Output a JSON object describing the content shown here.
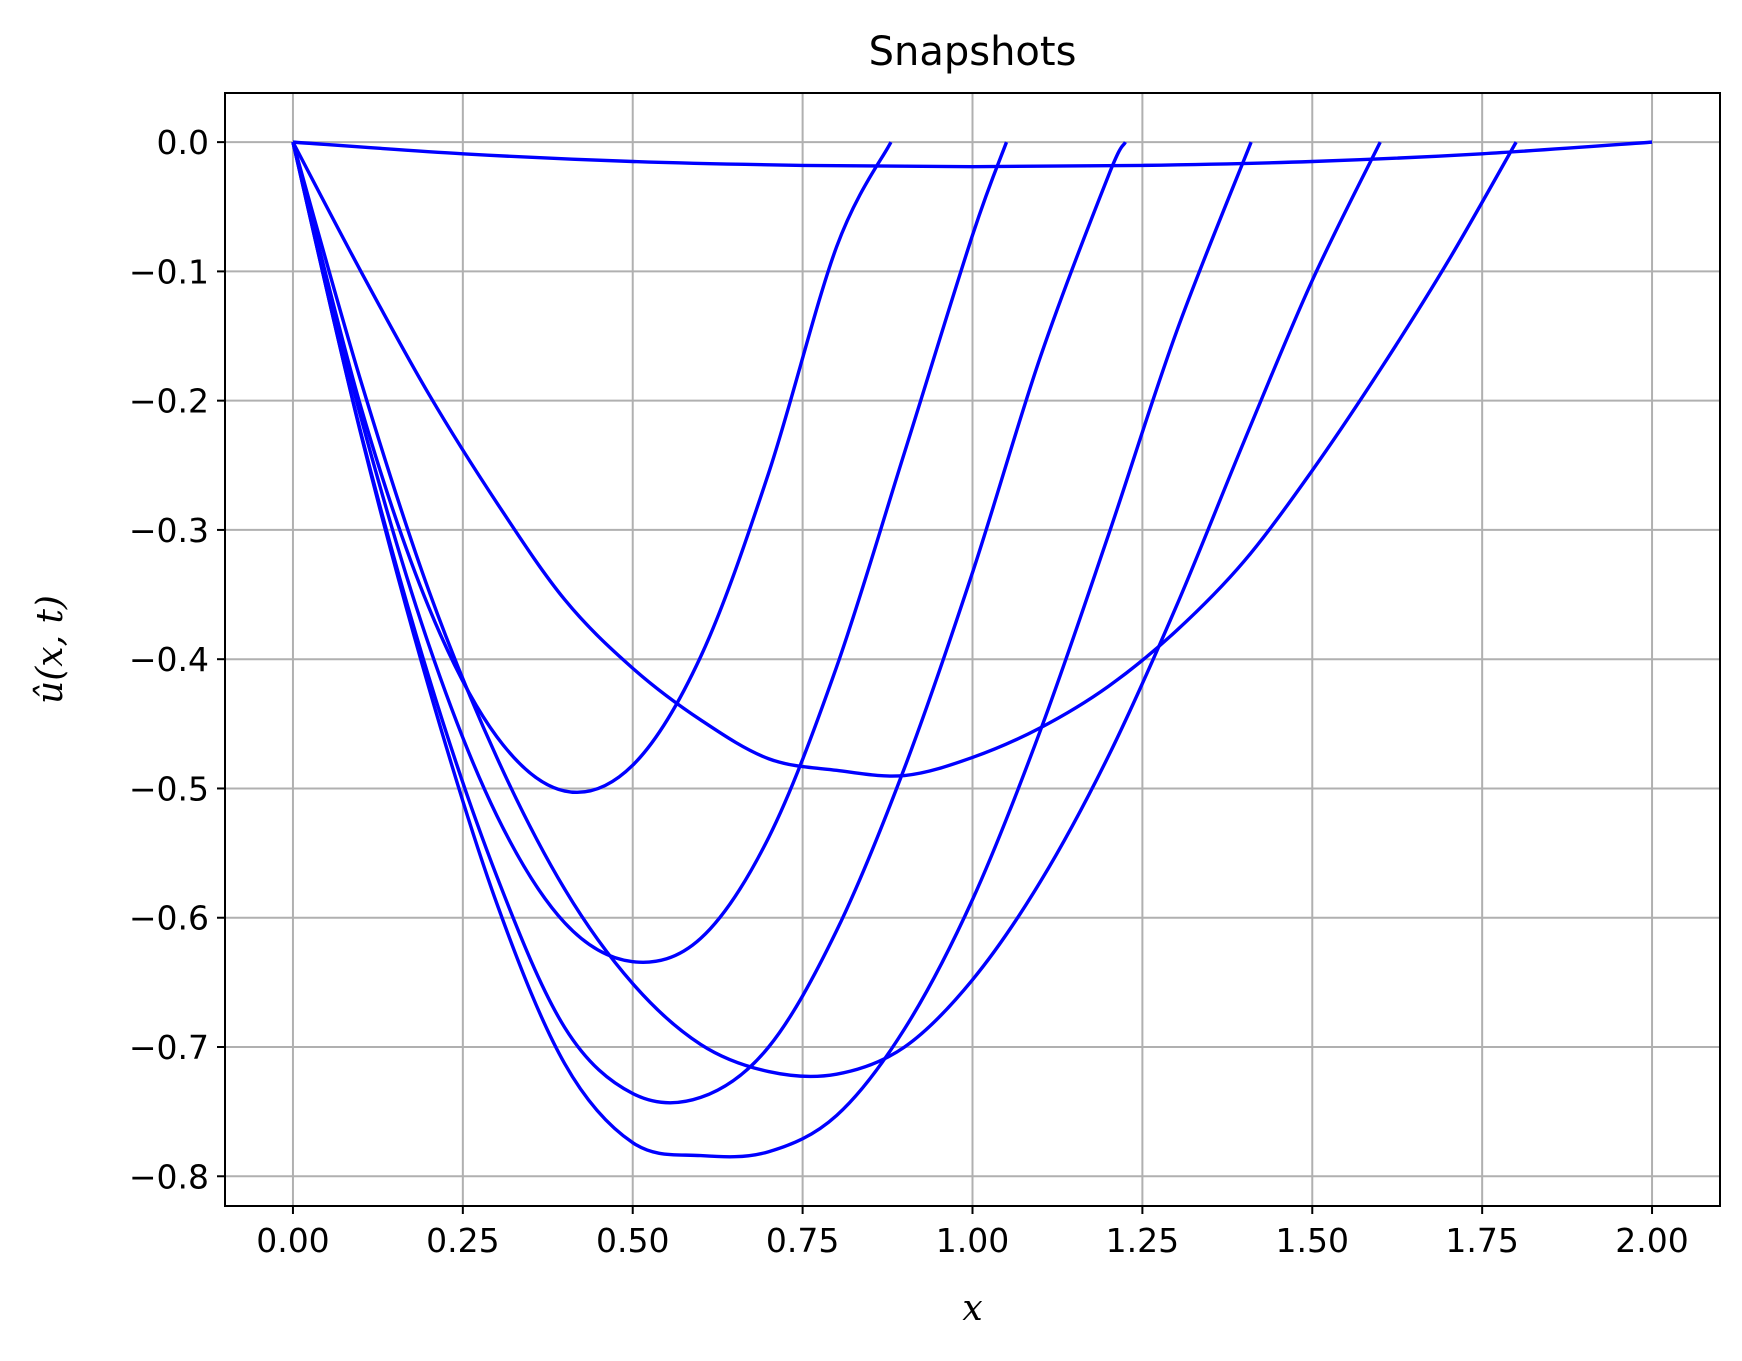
{
  "chart_data": {
    "type": "line",
    "title": "Snapshots",
    "xlabel": "x",
    "ylabel": "û(x, t)",
    "xlim": [
      -0.1,
      2.1
    ],
    "ylim": [
      -0.823,
      0.038
    ],
    "grid": true,
    "legend": "none",
    "x_ticks": [
      0.0,
      0.25,
      0.5,
      0.75,
      1.0,
      1.25,
      1.5,
      1.75,
      2.0
    ],
    "x_tick_labels": [
      "0.00",
      "0.25",
      "0.50",
      "0.75",
      "1.00",
      "1.25",
      "1.50",
      "1.75",
      "2.00"
    ],
    "y_ticks": [
      0.0,
      -0.1,
      -0.2,
      -0.3,
      -0.4,
      -0.5,
      -0.6,
      -0.7,
      -0.8
    ],
    "y_tick_labels": [
      "0.0",
      "−0.1",
      "−0.2",
      "−0.3",
      "−0.4",
      "−0.5",
      "−0.6",
      "−0.7",
      "−0.8"
    ],
    "series_color": "#0000ff",
    "series": [
      {
        "x": [
          0.0,
          0.1,
          0.2,
          0.3,
          0.4,
          0.5,
          0.6,
          0.7,
          0.8,
          0.88
        ],
        "y": [
          0.0,
          -0.205,
          -0.36,
          -0.46,
          -0.502,
          -0.482,
          -0.398,
          -0.256,
          -0.081,
          0.0
        ]
      },
      {
        "x": [
          0.0,
          0.1,
          0.2,
          0.3,
          0.4,
          0.5,
          0.6,
          0.7,
          0.8,
          0.9,
          1.0,
          1.05
        ],
        "y": [
          0.0,
          -0.213,
          -0.389,
          -0.521,
          -0.604,
          -0.634,
          -0.616,
          -0.538,
          -0.406,
          -0.24,
          -0.072,
          0.0
        ]
      },
      {
        "x": [
          0.0,
          0.1,
          0.2,
          0.3,
          0.4,
          0.5,
          0.6,
          0.7,
          0.8,
          0.9,
          1.0,
          1.1,
          1.2,
          1.225
        ],
        "y": [
          0.0,
          -0.225,
          -0.414,
          -0.568,
          -0.685,
          -0.736,
          -0.739,
          -0.7,
          -0.61,
          -0.484,
          -0.333,
          -0.166,
          -0.026,
          0.0
        ]
      },
      {
        "x": [
          0.0,
          0.1,
          0.2,
          0.3,
          0.4,
          0.5,
          0.6,
          0.7,
          0.8,
          0.9,
          1.0,
          1.1,
          1.2,
          1.3,
          1.41
        ],
        "y": [
          0.0,
          -0.226,
          -0.422,
          -0.589,
          -0.713,
          -0.774,
          -0.784,
          -0.781,
          -0.753,
          -0.686,
          -0.586,
          -0.455,
          -0.304,
          -0.147,
          0.0
        ]
      },
      {
        "x": [
          0.0,
          0.1,
          0.2,
          0.3,
          0.4,
          0.5,
          0.6,
          0.7,
          0.8,
          0.9,
          1.0,
          1.1,
          1.2,
          1.3,
          1.4,
          1.5,
          1.6
        ],
        "y": [
          0.0,
          -0.185,
          -0.347,
          -0.476,
          -0.578,
          -0.651,
          -0.698,
          -0.719,
          -0.721,
          -0.7,
          -0.648,
          -0.572,
          -0.475,
          -0.359,
          -0.231,
          -0.107,
          0.0
        ]
      },
      {
        "x": [
          0.0,
          0.1,
          0.2,
          0.3,
          0.4,
          0.5,
          0.6,
          0.7,
          0.8,
          0.9,
          1.0,
          1.1,
          1.2,
          1.3,
          1.4,
          1.5,
          1.6,
          1.7,
          1.8
        ],
        "y": [
          0.0,
          -0.1,
          -0.195,
          -0.279,
          -0.354,
          -0.407,
          -0.447,
          -0.477,
          -0.486,
          -0.49,
          -0.476,
          -0.453,
          -0.421,
          -0.378,
          -0.324,
          -0.254,
          -0.176,
          -0.092,
          0.0
        ]
      },
      {
        "x": [
          0.0,
          0.25,
          0.5,
          0.75,
          1.0,
          1.25,
          1.5,
          1.75,
          2.0
        ],
        "y": [
          0.0,
          -0.009,
          -0.015,
          -0.018,
          -0.019,
          -0.018,
          -0.015,
          -0.009,
          0.0
        ]
      }
    ]
  }
}
